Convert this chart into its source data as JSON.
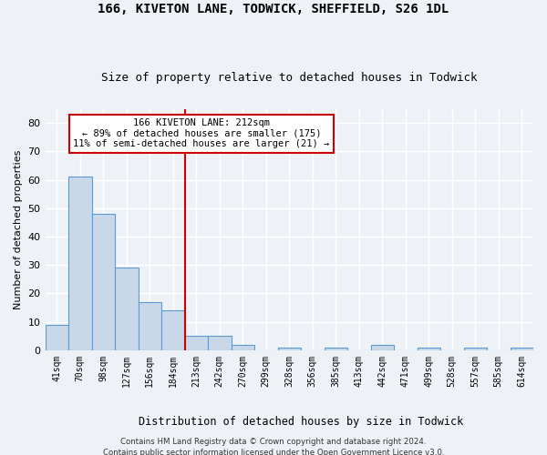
{
  "title_line1": "166, KIVETON LANE, TODWICK, SHEFFIELD, S26 1DL",
  "title_line2": "Size of property relative to detached houses in Todwick",
  "xlabel": "Distribution of detached houses by size in Todwick",
  "ylabel": "Number of detached properties",
  "bar_labels": [
    "41sqm",
    "70sqm",
    "98sqm",
    "127sqm",
    "156sqm",
    "184sqm",
    "213sqm",
    "242sqm",
    "270sqm",
    "299sqm",
    "328sqm",
    "356sqm",
    "385sqm",
    "413sqm",
    "442sqm",
    "471sqm",
    "499sqm",
    "528sqm",
    "557sqm",
    "585sqm",
    "614sqm"
  ],
  "bar_values": [
    9,
    61,
    48,
    29,
    17,
    14,
    5,
    5,
    2,
    0,
    1,
    0,
    1,
    0,
    2,
    0,
    1,
    0,
    1,
    0,
    1
  ],
  "bar_color": "#c8d8e8",
  "bar_edgecolor": "#5b9bd5",
  "vline_index": 6,
  "ylim": [
    0,
    85
  ],
  "yticks": [
    0,
    10,
    20,
    30,
    40,
    50,
    60,
    70,
    80
  ],
  "annotation_text": "166 KIVETON LANE: 212sqm\n← 89% of detached houses are smaller (175)\n11% of semi-detached houses are larger (21) →",
  "annotation_box_facecolor": "#ffffff",
  "annotation_box_edgecolor": "#cc0000",
  "footer_line1": "Contains HM Land Registry data © Crown copyright and database right 2024.",
  "footer_line2": "Contains public sector information licensed under the Open Government Licence v3.0.",
  "background_color": "#eef2f7",
  "grid_color": "#ffffff",
  "vline_color": "#cc0000"
}
